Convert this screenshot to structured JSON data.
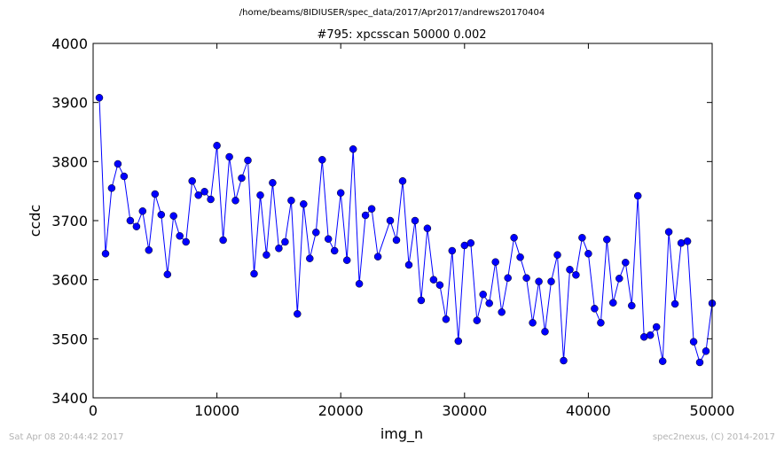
{
  "figure": {
    "path_title": "/home/beams/8IDIUSER/spec_data/2017/Apr2017/andrews20170404",
    "timestamp": "Sat Apr 08 20:44:42 2017",
    "credit": "spec2nexus, (C) 2014-2017"
  },
  "chart_data": {
    "type": "line",
    "title": "#795: xpcsscan 50000 0.002",
    "xlabel": "img_n",
    "ylabel": "ccdc",
    "xlim": [
      0,
      50000
    ],
    "ylim": [
      3400,
      4000
    ],
    "xticks": [
      0,
      10000,
      20000,
      30000,
      40000,
      50000
    ],
    "yticks": [
      3400,
      3500,
      3600,
      3700,
      3800,
      3900,
      4000
    ],
    "grid": false,
    "marker": "circle",
    "color": "#0000ff",
    "series": [
      {
        "x": [
          500,
          1000,
          1500,
          2000,
          2500,
          3000,
          3500,
          4000,
          4500,
          5000,
          5500,
          6000,
          6500,
          7000,
          7500,
          8000,
          8500,
          9000,
          9500,
          10000,
          10500,
          11000,
          11500,
          12000,
          12500,
          13000,
          13500,
          14000,
          14500,
          15000,
          15500,
          16000,
          16500,
          17000,
          17500,
          18000,
          18500,
          19000,
          19500,
          20000,
          20500,
          21000,
          21500,
          22000,
          22500,
          23000,
          24000,
          24500,
          25000,
          25500,
          26000,
          26500,
          27000,
          27500,
          28000,
          28500,
          29000,
          29500,
          30000,
          30500,
          31000,
          31500,
          32000,
          32500,
          33000,
          33500,
          34000,
          34500,
          35000,
          35500,
          36000,
          36500,
          37000,
          37500,
          38000,
          38500,
          39000,
          39500,
          40000,
          40500,
          41000,
          41500,
          42000,
          42500,
          43000,
          43500,
          44000,
          44500,
          45000,
          45500,
          46000,
          46500,
          47000,
          47500,
          48000,
          48500,
          49000,
          49500,
          50000
        ],
        "y": [
          3908,
          3644,
          3755,
          3796,
          3775,
          3700,
          3690,
          3716,
          3650,
          3745,
          3710,
          3609,
          3708,
          3674,
          3664,
          3767,
          3743,
          3749,
          3736,
          3827,
          3667,
          3808,
          3734,
          3772,
          3802,
          3610,
          3743,
          3642,
          3764,
          3653,
          3664,
          3734,
          3542,
          3728,
          3636,
          3680,
          3803,
          3669,
          3649,
          3747,
          3633,
          3821,
          3593,
          3709,
          3720,
          3639,
          3700,
          3667,
          3767,
          3625,
          3700,
          3565,
          3687,
          3600,
          3591,
          3533,
          3649,
          3496,
          3658,
          3662,
          3531,
          3575,
          3560,
          3630,
          3545,
          3603,
          3671,
          3638,
          3603,
          3527,
          3597,
          3512,
          3597,
          3642,
          3463,
          3617,
          3608,
          3671,
          3644,
          3551,
          3527,
          3668,
          3561,
          3602,
          3629,
          3556,
          3742,
          3503,
          3506,
          3520,
          3462,
          3681,
          3559,
          3662,
          3665,
          3495,
          3460,
          3479,
          3560
        ]
      }
    ]
  }
}
